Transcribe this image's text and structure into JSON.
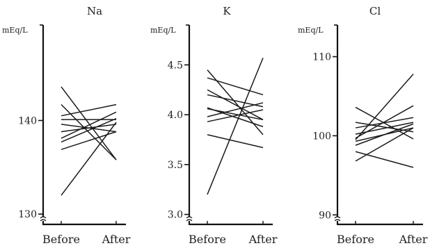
{
  "chart_data": [
    {
      "type": "line",
      "title": "Na",
      "ylabel": "mEq/L",
      "categories": [
        "Before",
        "After"
      ],
      "ylim": [
        128.9,
        150.2
      ],
      "yticks": [
        130,
        140
      ],
      "series": [
        {
          "values": [
            143.6,
            135.8
          ]
        },
        {
          "values": [
            141.7,
            135.8
          ]
        },
        {
          "values": [
            140.5,
            141.7
          ]
        },
        {
          "values": [
            140.1,
            140.1
          ]
        },
        {
          "values": [
            139.6,
            138.8
          ]
        },
        {
          "values": [
            138.8,
            139.6
          ]
        },
        {
          "values": [
            138.1,
            140.9
          ]
        },
        {
          "values": [
            137.7,
            140.2
          ]
        },
        {
          "values": [
            136.9,
            138.8
          ]
        },
        {
          "values": [
            132.0,
            139.8
          ]
        }
      ]
    },
    {
      "type": "line",
      "title": "K",
      "ylabel": "mEq/L",
      "categories": [
        "Before",
        "After"
      ],
      "ylim": [
        2.9,
        4.9
      ],
      "yticks": [
        3.0,
        3.5,
        4.0,
        4.5
      ],
      "series": [
        {
          "values": [
            4.45,
            3.8
          ]
        },
        {
          "values": [
            4.37,
            4.2
          ]
        },
        {
          "values": [
            4.25,
            3.95
          ]
        },
        {
          "values": [
            4.2,
            4.08
          ]
        },
        {
          "values": [
            4.07,
            3.88
          ]
        },
        {
          "values": [
            4.06,
            3.95
          ]
        },
        {
          "values": [
            3.98,
            4.12
          ]
        },
        {
          "values": [
            3.93,
            4.05
          ]
        },
        {
          "values": [
            3.8,
            3.67
          ]
        },
        {
          "values": [
            3.2,
            4.57
          ]
        }
      ]
    },
    {
      "type": "line",
      "title": "Cl",
      "ylabel": "mEq/L",
      "categories": [
        "Before",
        "After"
      ],
      "ylim": [
        88.8,
        114.0
      ],
      "yticks": [
        90,
        100,
        110
      ],
      "series": [
        {
          "values": [
            103.6,
            99.6
          ]
        },
        {
          "values": [
            101.7,
            100.5
          ]
        },
        {
          "values": [
            101.0,
            102.3
          ]
        },
        {
          "values": [
            100.2,
            101.7
          ]
        },
        {
          "values": [
            99.7,
            103.8
          ]
        },
        {
          "values": [
            99.5,
            107.8
          ]
        },
        {
          "values": [
            99.3,
            101.0
          ]
        },
        {
          "values": [
            98.8,
            101.5
          ]
        },
        {
          "values": [
            98.0,
            96.0
          ]
        },
        {
          "values": [
            96.8,
            101.0
          ]
        }
      ]
    }
  ],
  "unit_label": "mEq/L"
}
